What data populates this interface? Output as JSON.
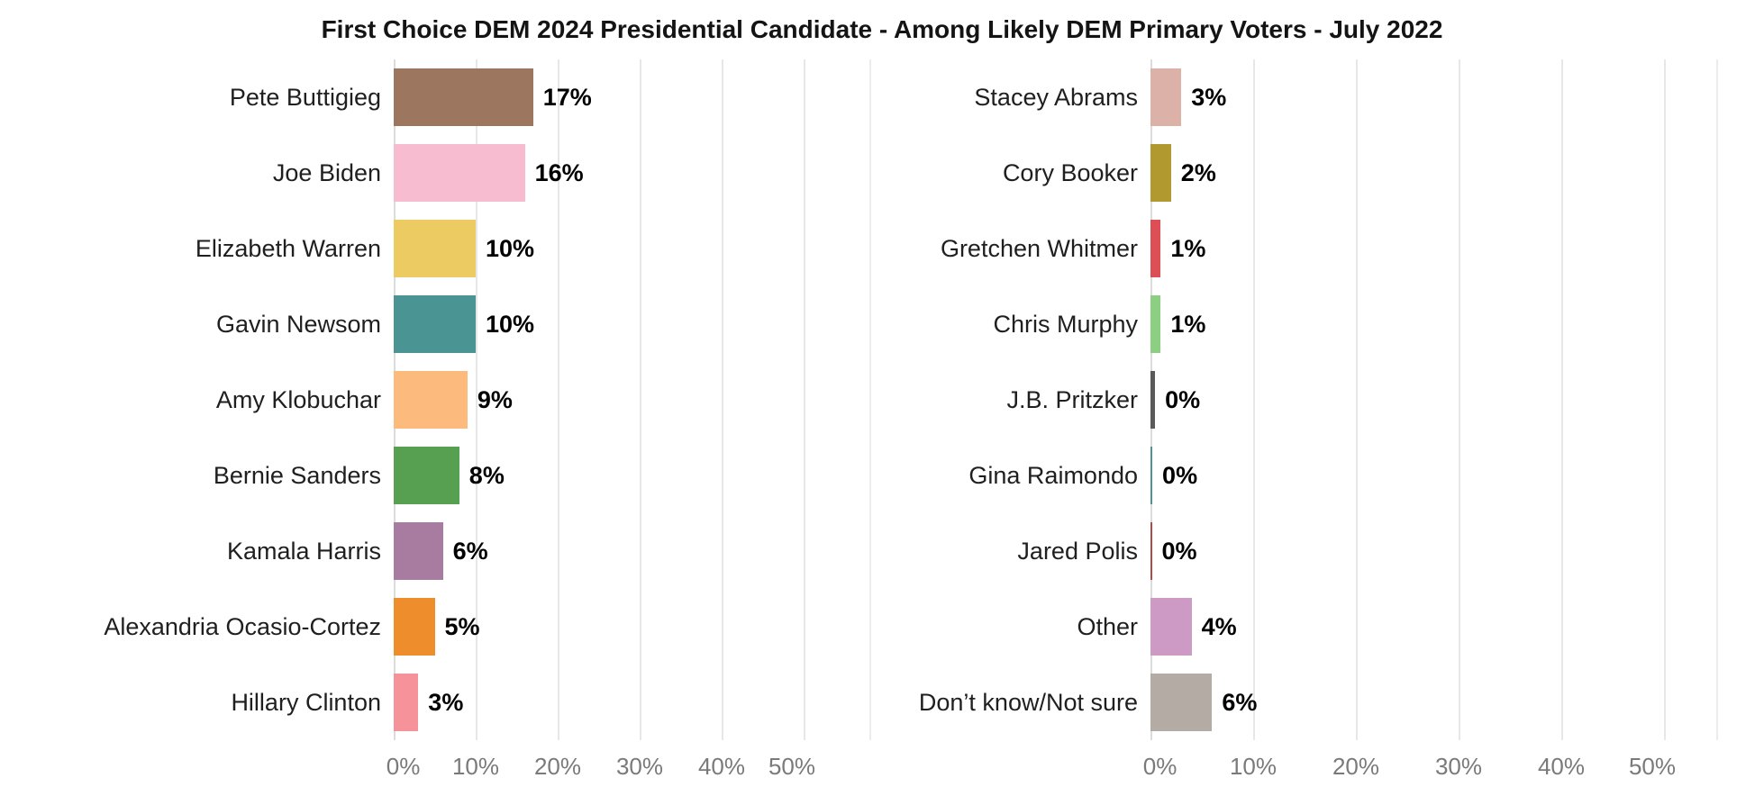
{
  "chart_data": {
    "type": "bar",
    "orientation": "horizontal",
    "title": "First Choice DEM 2024 Presidential Candidate - Among Likely DEM Primary Voters - July 2022",
    "x_axis": {
      "tick_values": [
        0,
        10,
        20,
        30,
        40,
        50
      ],
      "tick_labels": [
        "0%",
        "10%",
        "20%",
        "30%",
        "40%",
        "50%"
      ],
      "range": [
        0,
        55
      ],
      "grid": true
    },
    "legend": "none",
    "panels": [
      {
        "name": "left-panel",
        "items": [
          {
            "label": "Pete Buttigieg",
            "value": 17,
            "value_label": "17%",
            "color": "#9d7660"
          },
          {
            "label": "Joe Biden",
            "value": 16,
            "value_label": "16%",
            "color": "#f8bcd1"
          },
          {
            "label": "Elizabeth Warren",
            "value": 10,
            "value_label": "10%",
            "color": "#edcb63"
          },
          {
            "label": "Gavin Newsom",
            "value": 10,
            "value_label": "10%",
            "color": "#4a9594"
          },
          {
            "label": "Amy Klobuchar",
            "value": 9,
            "value_label": "9%",
            "color": "#fcbb7c"
          },
          {
            "label": "Bernie Sanders",
            "value": 8,
            "value_label": "8%",
            "color": "#57a052"
          },
          {
            "label": "Kamala Harris",
            "value": 6,
            "value_label": "6%",
            "color": "#a87ba0"
          },
          {
            "label": "Alexandria Ocasio-Cortez",
            "value": 5,
            "value_label": "5%",
            "color": "#ee8d2c"
          },
          {
            "label": "Hillary Clinton",
            "value": 3,
            "value_label": "3%",
            "color": "#f6939a"
          }
        ]
      },
      {
        "name": "right-panel",
        "items": [
          {
            "label": "Stacey Abrams",
            "value": 3,
            "value_label": "3%",
            "color": "#dcb1a7"
          },
          {
            "label": "Cory Booker",
            "value": 2,
            "value_label": "2%",
            "color": "#b1992f"
          },
          {
            "label": "Gretchen Whitmer",
            "value": 1,
            "value_label": "1%",
            "color": "#dd4f55"
          },
          {
            "label": "Chris Murphy",
            "value": 1,
            "value_label": "1%",
            "color": "#8ccf83"
          },
          {
            "label": "J.B. Pritzker",
            "value": 0,
            "value_label": "0%",
            "color": "#5a5a5a",
            "bar_pct": 0.45
          },
          {
            "label": "Gina Raimondo",
            "value": 0,
            "value_label": "0%",
            "color": "#4a9594",
            "bar_pct": 0.18
          },
          {
            "label": "Jared Polis",
            "value": 0,
            "value_label": "0%",
            "color": "#b04a48",
            "bar_pct": 0.12
          },
          {
            "label": "Other",
            "value": 4,
            "value_label": "4%",
            "color": "#cc9ac4"
          },
          {
            "label": "Don’t know/Not sure",
            "value": 6,
            "value_label": "6%",
            "color": "#b4aba5"
          }
        ]
      }
    ],
    "colors": {
      "background": "#ffffff",
      "grid": "#e7e7e7",
      "axis_text": "#7a7a7a",
      "label_text": "#1f1f1f",
      "value_text": "#000000",
      "title_text": "#141414"
    }
  }
}
